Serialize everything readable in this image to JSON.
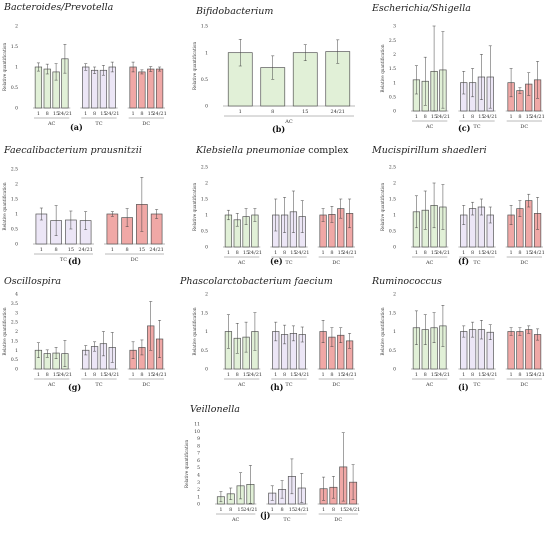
{
  "colors": {
    "AC": "#e1f0d7",
    "TC": "#ece6f6",
    "DC": "#f0a8a6",
    "border": "#555555",
    "err": "#444444"
  },
  "chart_data": [
    {
      "type": "bar",
      "id": "a",
      "label": "(a)",
      "title": "Bacteroides/Prevotella",
      "title_suffix": "",
      "ylabel": "Relative quantification",
      "ylim": [
        0,
        2
      ],
      "yticks": [
        "0",
        "0.5",
        "1",
        "1.5",
        "2"
      ],
      "groups": [
        {
          "name": "AC",
          "color": "AC",
          "bars": [
            {
              "x": "1",
              "y": 1.0,
              "err": 0.1
            },
            {
              "x": "8",
              "y": 0.95,
              "err": 0.12
            },
            {
              "x": "15",
              "y": 0.88,
              "err": 0.2
            },
            {
              "x": "24/21",
              "y": 1.2,
              "err": 0.35
            }
          ]
        },
        {
          "name": "TC",
          "color": "TC",
          "bars": [
            {
              "x": "1",
              "y": 1.0,
              "err": 0.08
            },
            {
              "x": "8",
              "y": 0.92,
              "err": 0.08
            },
            {
              "x": "15",
              "y": 0.92,
              "err": 0.12
            },
            {
              "x": "24/21",
              "y": 1.0,
              "err": 0.12
            }
          ]
        },
        {
          "name": "DC",
          "color": "DC",
          "bars": [
            {
              "x": "1",
              "y": 1.0,
              "err": 0.12
            },
            {
              "x": "8",
              "y": 0.88,
              "err": 0.05
            },
            {
              "x": "15",
              "y": 0.95,
              "err": 0.06
            },
            {
              "x": "24/21",
              "y": 0.95,
              "err": 0.05
            }
          ]
        }
      ]
    },
    {
      "type": "bar",
      "id": "b",
      "label": "(b)",
      "title": "Bifidobacterium",
      "title_suffix": "",
      "ylabel": "Relative quantification",
      "ylim": [
        0,
        1.5
      ],
      "yticks": [
        "0",
        "0.5",
        "1",
        "1.5"
      ],
      "groups": [
        {
          "name": "AC",
          "color": "AC",
          "bars": [
            {
              "x": "1",
              "y": 1.0,
              "err": 0.25
            },
            {
              "x": "8",
              "y": 0.72,
              "err": 0.22
            },
            {
              "x": "15",
              "y": 1.0,
              "err": 0.15
            },
            {
              "x": "24/21",
              "y": 1.02,
              "err": 0.22
            }
          ]
        }
      ]
    },
    {
      "type": "bar",
      "id": "c",
      "label": "(c)",
      "title": "Escherichia/Shigella",
      "title_suffix": "",
      "ylabel": "Relative quantification",
      "ylim": [
        0,
        3
      ],
      "yticks": [
        "0",
        "0.5",
        "1",
        "1.5",
        "2",
        "2.5",
        "3"
      ],
      "groups": [
        {
          "name": "AC",
          "color": "AC",
          "bars": [
            {
              "x": "1",
              "y": 1.1,
              "err": 0.5
            },
            {
              "x": "8",
              "y": 1.05,
              "err": 0.85
            },
            {
              "x": "15",
              "y": 1.4,
              "err": 1.6
            },
            {
              "x": "24/21",
              "y": 1.45,
              "err": 1.35
            }
          ]
        },
        {
          "name": "TC",
          "color": "TC",
          "bars": [
            {
              "x": "1",
              "y": 1.0,
              "err": 0.4
            },
            {
              "x": "8",
              "y": 1.0,
              "err": 0.5
            },
            {
              "x": "15",
              "y": 1.2,
              "err": 0.8
            },
            {
              "x": "24/21",
              "y": 1.2,
              "err": 1.1
            }
          ]
        },
        {
          "name": "DC",
          "color": "DC",
          "bars": [
            {
              "x": "1",
              "y": 1.0,
              "err": 0.5
            },
            {
              "x": "8",
              "y": 0.72,
              "err": 0.1
            },
            {
              "x": "15",
              "y": 0.95,
              "err": 0.4
            },
            {
              "x": "24/21",
              "y": 1.1,
              "err": 0.65
            }
          ]
        }
      ]
    },
    {
      "type": "bar",
      "id": "d",
      "label": "(d)",
      "title": "Faecalibacterium prausnitzii",
      "title_suffix": "",
      "ylabel": "Relative quantification",
      "ylim": [
        0,
        2.5
      ],
      "yticks": [
        "0",
        "0.5",
        "1",
        "1.5",
        "2",
        "2.5"
      ],
      "groups": [
        {
          "name": "TC",
          "color": "TC",
          "bars": [
            {
              "x": "1",
              "y": 1.0,
              "err": 0.2
            },
            {
              "x": "8",
              "y": 0.78,
              "err": 0.5
            },
            {
              "x": "15",
              "y": 0.8,
              "err": 0.3
            },
            {
              "x": "24/21",
              "y": 0.78,
              "err": 0.3
            }
          ]
        },
        {
          "name": "DC",
          "color": "DC",
          "bars": [
            {
              "x": "1",
              "y": 1.0,
              "err": 0.08
            },
            {
              "x": "8",
              "y": 0.88,
              "err": 0.3
            },
            {
              "x": "15",
              "y": 1.32,
              "err": 0.9
            },
            {
              "x": "24/21",
              "y": 1.0,
              "err": 0.15
            }
          ]
        }
      ]
    },
    {
      "type": "bar",
      "id": "e",
      "label": "(e)",
      "title": "Klebsiella pneumoniae",
      "title_suffix": " complex",
      "ylabel": "Relative quantification",
      "ylim": [
        0,
        2.5
      ],
      "yticks": [
        "0",
        "0.5",
        "1",
        "1.5",
        "2",
        "2.5"
      ],
      "groups": [
        {
          "name": "AC",
          "color": "AC",
          "bars": [
            {
              "x": "1",
              "y": 1.0,
              "err": 0.15
            },
            {
              "x": "8",
              "y": 0.85,
              "err": 0.2
            },
            {
              "x": "15",
              "y": 0.95,
              "err": 0.25
            },
            {
              "x": "24/21",
              "y": 1.0,
              "err": 0.2
            }
          ]
        },
        {
          "name": "TC",
          "color": "TC",
          "bars": [
            {
              "x": "1",
              "y": 1.0,
              "err": 0.5
            },
            {
              "x": "8",
              "y": 1.0,
              "err": 0.55
            },
            {
              "x": "15",
              "y": 1.1,
              "err": 0.65
            },
            {
              "x": "24/21",
              "y": 0.95,
              "err": 0.5
            }
          ]
        },
        {
          "name": "DC",
          "color": "DC",
          "bars": [
            {
              "x": "1",
              "y": 1.0,
              "err": 0.2
            },
            {
              "x": "8",
              "y": 1.02,
              "err": 0.25
            },
            {
              "x": "15",
              "y": 1.2,
              "err": 0.3
            },
            {
              "x": "24/21",
              "y": 1.05,
              "err": 0.45
            }
          ]
        }
      ]
    },
    {
      "type": "bar",
      "id": "f",
      "label": "(f)",
      "title": "Mucispirillum shaedleri",
      "title_suffix": "",
      "ylabel": "Relative quantification",
      "ylim": [
        0,
        2.5
      ],
      "yticks": [
        "0",
        "0.5",
        "1",
        "1.5",
        "2",
        "2.5"
      ],
      "groups": [
        {
          "name": "AC",
          "color": "AC",
          "bars": [
            {
              "x": "1",
              "y": 1.1,
              "err": 0.5
            },
            {
              "x": "8",
              "y": 1.15,
              "err": 0.6
            },
            {
              "x": "15",
              "y": 1.3,
              "err": 0.7
            },
            {
              "x": "24/21",
              "y": 1.25,
              "err": 0.7
            }
          ]
        },
        {
          "name": "TC",
          "color": "TC",
          "bars": [
            {
              "x": "1",
              "y": 1.0,
              "err": 0.3
            },
            {
              "x": "8",
              "y": 1.2,
              "err": 0.2
            },
            {
              "x": "15",
              "y": 1.25,
              "err": 0.25
            },
            {
              "x": "24/21",
              "y": 1.0,
              "err": 0.25
            }
          ]
        },
        {
          "name": "DC",
          "color": "DC",
          "bars": [
            {
              "x": "1",
              "y": 1.0,
              "err": 0.3
            },
            {
              "x": "8",
              "y": 1.2,
              "err": 0.25
            },
            {
              "x": "15",
              "y": 1.45,
              "err": 0.2
            },
            {
              "x": "24/21",
              "y": 1.05,
              "err": 0.5
            }
          ]
        }
      ]
    },
    {
      "type": "bar",
      "id": "g",
      "label": "(g)",
      "title": "Oscillospira",
      "title_suffix": "",
      "ylabel": "Relative quantification",
      "ylim": [
        0,
        4
      ],
      "yticks": [
        "0",
        "0.5",
        "1",
        "1.5",
        "2",
        "2.5",
        "3",
        "3.5",
        "4"
      ],
      "groups": [
        {
          "name": "AC",
          "color": "AC",
          "bars": [
            {
              "x": "1",
              "y": 1.0,
              "err": 0.4
            },
            {
              "x": "8",
              "y": 0.82,
              "err": 0.2
            },
            {
              "x": "15",
              "y": 0.85,
              "err": 0.3
            },
            {
              "x": "24/21",
              "y": 0.82,
              "err": 0.7
            }
          ]
        },
        {
          "name": "TC",
          "color": "TC",
          "bars": [
            {
              "x": "1",
              "y": 1.0,
              "err": 0.25
            },
            {
              "x": "8",
              "y": 1.2,
              "err": 0.25
            },
            {
              "x": "15",
              "y": 1.35,
              "err": 0.65
            },
            {
              "x": "24/21",
              "y": 1.15,
              "err": 0.8
            }
          ]
        },
        {
          "name": "DC",
          "color": "DC",
          "bars": [
            {
              "x": "1",
              "y": 1.0,
              "err": 0.45
            },
            {
              "x": "8",
              "y": 1.15,
              "err": 0.4
            },
            {
              "x": "15",
              "y": 2.3,
              "err": 1.3
            },
            {
              "x": "24/21",
              "y": 1.6,
              "err": 1.0
            }
          ]
        }
      ]
    },
    {
      "type": "bar",
      "id": "h",
      "label": "(h)",
      "title": "Phascolarctobacterium faecium",
      "title_suffix": "",
      "ylabel": "Relative quantification",
      "ylim": [
        0,
        2
      ],
      "yticks": [
        "0",
        "0.5",
        "1",
        "1.5",
        "2"
      ],
      "groups": [
        {
          "name": "AC",
          "color": "AC",
          "bars": [
            {
              "x": "1",
              "y": 1.0,
              "err": 0.45
            },
            {
              "x": "8",
              "y": 0.82,
              "err": 0.4
            },
            {
              "x": "15",
              "y": 0.85,
              "err": 0.4
            },
            {
              "x": "24/21",
              "y": 1.0,
              "err": 0.5
            }
          ]
        },
        {
          "name": "TC",
          "color": "TC",
          "bars": [
            {
              "x": "1",
              "y": 1.0,
              "err": 0.25
            },
            {
              "x": "8",
              "y": 0.92,
              "err": 0.25
            },
            {
              "x": "15",
              "y": 0.95,
              "err": 0.2
            },
            {
              "x": "24/21",
              "y": 0.92,
              "err": 0.2
            }
          ]
        },
        {
          "name": "DC",
          "color": "DC",
          "bars": [
            {
              "x": "1",
              "y": 1.0,
              "err": 0.3
            },
            {
              "x": "8",
              "y": 0.85,
              "err": 0.25
            },
            {
              "x": "15",
              "y": 0.9,
              "err": 0.2
            },
            {
              "x": "24/21",
              "y": 0.75,
              "err": 0.2
            }
          ]
        }
      ]
    },
    {
      "type": "bar",
      "id": "i",
      "label": "(i)",
      "title": "Ruminococcus",
      "title_suffix": "",
      "ylabel": "Relative quantification",
      "ylim": [
        0,
        2
      ],
      "yticks": [
        "0",
        "0.5",
        "1",
        "1.5",
        "2"
      ],
      "groups": [
        {
          "name": "AC",
          "color": "AC",
          "bars": [
            {
              "x": "1",
              "y": 1.1,
              "err": 0.45
            },
            {
              "x": "8",
              "y": 1.05,
              "err": 0.4
            },
            {
              "x": "15",
              "y": 1.1,
              "err": 0.4
            },
            {
              "x": "24/21",
              "y": 1.15,
              "err": 0.55
            }
          ]
        },
        {
          "name": "TC",
          "color": "TC",
          "bars": [
            {
              "x": "1",
              "y": 1.0,
              "err": 0.15
            },
            {
              "x": "8",
              "y": 1.05,
              "err": 0.2
            },
            {
              "x": "15",
              "y": 1.05,
              "err": 0.25
            },
            {
              "x": "24/21",
              "y": 0.98,
              "err": 0.2
            }
          ]
        },
        {
          "name": "DC",
          "color": "DC",
          "bars": [
            {
              "x": "1",
              "y": 1.0,
              "err": 0.1
            },
            {
              "x": "8",
              "y": 1.0,
              "err": 0.1
            },
            {
              "x": "15",
              "y": 1.05,
              "err": 0.1
            },
            {
              "x": "24/21",
              "y": 0.92,
              "err": 0.15
            }
          ]
        }
      ]
    },
    {
      "type": "bar",
      "id": "j",
      "label": "(j)",
      "title": "Veillonella",
      "title_suffix": "",
      "ylabel": "Relative quantification",
      "ylim": [
        0,
        11
      ],
      "yticks": [
        "0",
        "1",
        "2",
        "3",
        "4",
        "5",
        "6",
        "7",
        "8",
        "9",
        "10",
        "11"
      ],
      "groups": [
        {
          "name": "AC",
          "color": "AC",
          "bars": [
            {
              "x": "1",
              "y": 1.0,
              "err": 0.7
            },
            {
              "x": "8",
              "y": 1.4,
              "err": 0.8
            },
            {
              "x": "15",
              "y": 2.5,
              "err": 1.8
            },
            {
              "x": "24/21",
              "y": 2.7,
              "err": 2.6
            }
          ]
        },
        {
          "name": "TC",
          "color": "TC",
          "bars": [
            {
              "x": "1",
              "y": 1.5,
              "err": 1.0
            },
            {
              "x": "8",
              "y": 2.0,
              "err": 1.2
            },
            {
              "x": "15",
              "y": 3.8,
              "err": 2.4
            },
            {
              "x": "24/21",
              "y": 2.2,
              "err": 2.0
            }
          ]
        },
        {
          "name": "DC",
          "color": "DC",
          "bars": [
            {
              "x": "1",
              "y": 2.1,
              "err": 1.6
            },
            {
              "x": "8",
              "y": 2.3,
              "err": 1.5
            },
            {
              "x": "15",
              "y": 5.1,
              "err": 4.7
            },
            {
              "x": "24/21",
              "y": 3.0,
              "err": 2.4
            }
          ]
        }
      ]
    }
  ]
}
